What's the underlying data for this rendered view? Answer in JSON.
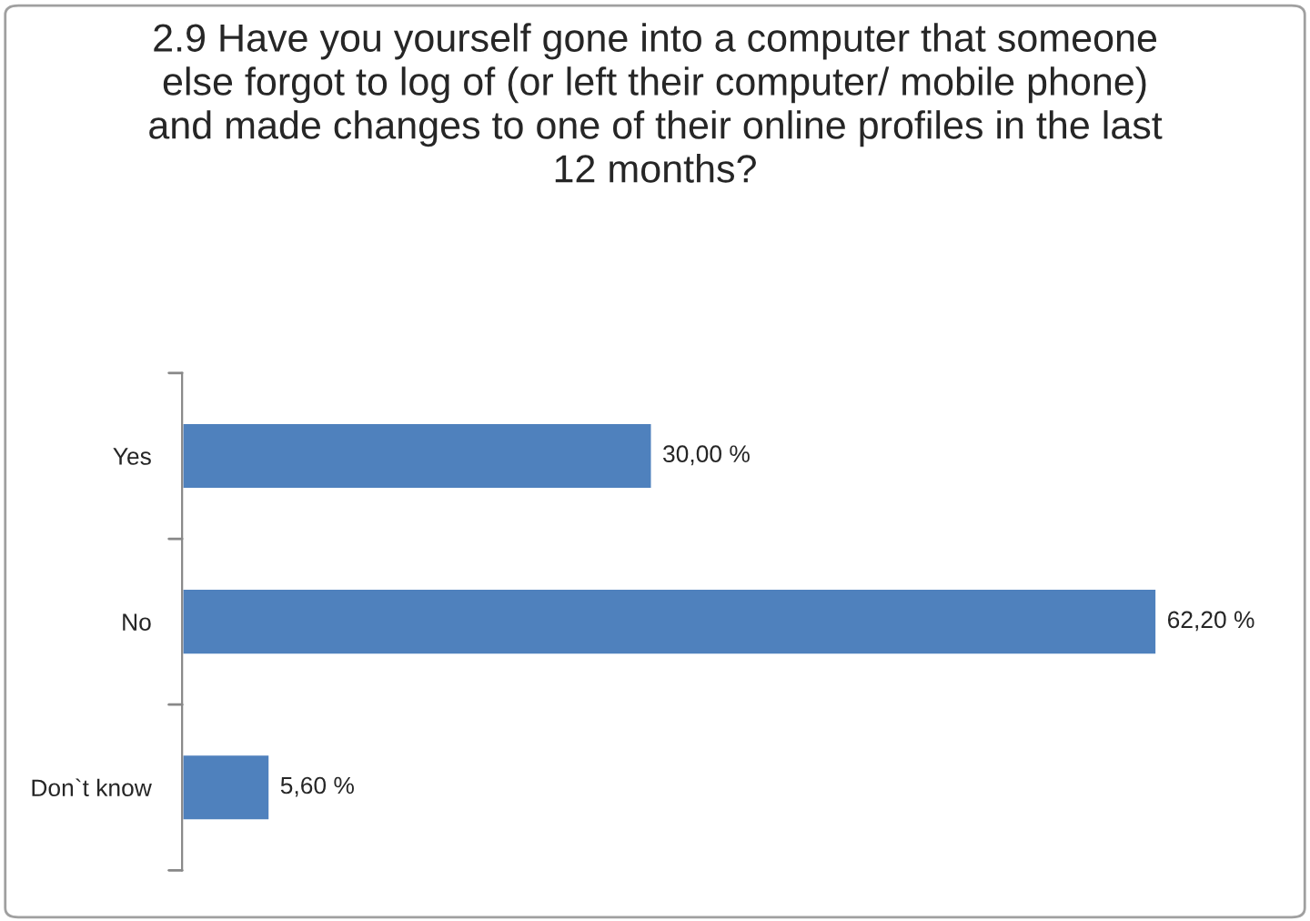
{
  "chart_data": {
    "type": "bar",
    "orientation": "horizontal",
    "title": "2.9 Have you yourself gone into a computer that someone else forgot to log of (or left their computer/ mobile phone) and made changes to one of their online profiles in the last 12 months?",
    "categories": [
      "Yes",
      "No",
      "Don`t know"
    ],
    "values": [
      30,
      62.2,
      5.6
    ],
    "value_labels": [
      "30,00 %",
      "62,20 %",
      "5,60 %"
    ],
    "color": "#4f81bd",
    "grid": false,
    "legend": false,
    "tick_labels": "y"
  }
}
